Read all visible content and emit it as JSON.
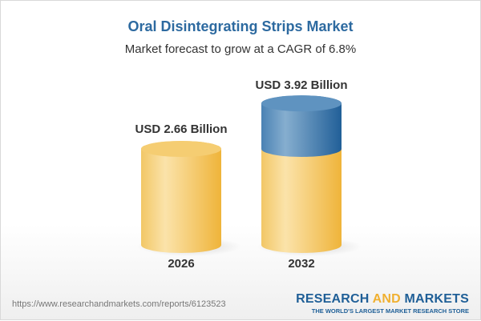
{
  "title": "Oral Disintegrating Strips Market",
  "subtitle": "Market forecast to grow at a CAGR of 6.8%",
  "footer": {
    "url": "https://www.researchandmarkets.com/reports/6123523",
    "logo_part1": "RESEARCH ",
    "logo_part2": "AND",
    "logo_part3": " MARKETS",
    "logo_tagline": "THE WORLD'S LARGEST MARKET RESEARCH STORE"
  },
  "chart_data": {
    "type": "bar",
    "style": "3d-cylinder",
    "categories": [
      "2026",
      "2032"
    ],
    "values": [
      2.66,
      3.92
    ],
    "data_labels": [
      "USD 2.66 Billion",
      "USD 3.92 Billion"
    ],
    "unit": "USD Billion",
    "colors": {
      "base": "#f3c55e",
      "growth": "#3d7bb0"
    }
  }
}
